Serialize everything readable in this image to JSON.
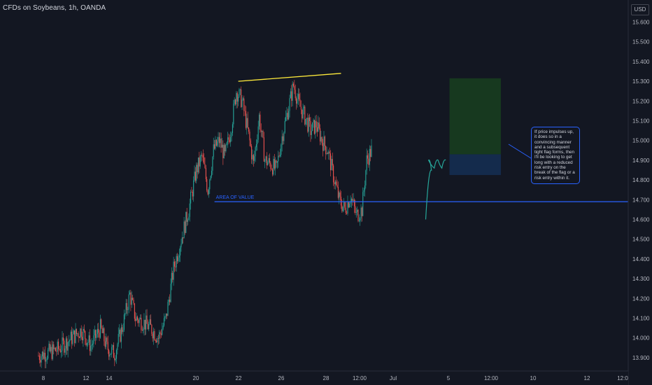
{
  "header": {
    "title": "CFDs on Soybeans, 1h, OANDA",
    "currency": "USD"
  },
  "chart_data": {
    "type": "candlestick",
    "title": "CFDs on Soybeans, 1h, OANDA",
    "price_axis_label": "USD",
    "ylim": [
      13.85,
      16.45
    ],
    "y_ticks": [
      "15.600",
      "15.500",
      "15.400",
      "15.300",
      "15.200",
      "15.100",
      "15.000",
      "14.900",
      "14.800",
      "14.700",
      "14.600",
      "14.500",
      "14.400",
      "14.300",
      "14.200",
      "14.100",
      "14.000",
      "13.900"
    ],
    "x_ticks": [
      "8",
      "12",
      "14",
      "20",
      "22",
      "26",
      "28",
      "12:00",
      "Jul",
      "5",
      "12:00",
      "10",
      "12",
      "12:0"
    ],
    "price_series": [
      {
        "idx": 0,
        "price": 13.91
      },
      {
        "idx": 20,
        "price": 13.94
      },
      {
        "idx": 35,
        "price": 14.0
      },
      {
        "idx": 45,
        "price": 14.04
      },
      {
        "idx": 55,
        "price": 13.96
      },
      {
        "idx": 65,
        "price": 14.05
      },
      {
        "idx": 72,
        "price": 13.95
      },
      {
        "idx": 80,
        "price": 13.92
      },
      {
        "idx": 88,
        "price": 14.05
      },
      {
        "idx": 96,
        "price": 14.22
      },
      {
        "idx": 102,
        "price": 14.1
      },
      {
        "idx": 110,
        "price": 14.08
      },
      {
        "idx": 118,
        "price": 14.05
      },
      {
        "idx": 126,
        "price": 14.0
      },
      {
        "idx": 134,
        "price": 14.1
      },
      {
        "idx": 142,
        "price": 14.35
      },
      {
        "idx": 150,
        "price": 14.5
      },
      {
        "idx": 158,
        "price": 14.65
      },
      {
        "idx": 166,
        "price": 14.85
      },
      {
        "idx": 172,
        "price": 14.92
      },
      {
        "idx": 178,
        "price": 14.75
      },
      {
        "idx": 184,
        "price": 14.95
      },
      {
        "idx": 190,
        "price": 15.0
      },
      {
        "idx": 196,
        "price": 14.92
      },
      {
        "idx": 202,
        "price": 15.05
      },
      {
        "idx": 208,
        "price": 15.25
      },
      {
        "idx": 214,
        "price": 15.2
      },
      {
        "idx": 220,
        "price": 15.05
      },
      {
        "idx": 226,
        "price": 14.88
      },
      {
        "idx": 232,
        "price": 15.12
      },
      {
        "idx": 238,
        "price": 14.9
      },
      {
        "idx": 244,
        "price": 14.88
      },
      {
        "idx": 250,
        "price": 14.85
      },
      {
        "idx": 256,
        "price": 15.02
      },
      {
        "idx": 262,
        "price": 15.15
      },
      {
        "idx": 268,
        "price": 15.28
      },
      {
        "idx": 274,
        "price": 15.18
      },
      {
        "idx": 280,
        "price": 15.12
      },
      {
        "idx": 286,
        "price": 15.05
      },
      {
        "idx": 292,
        "price": 15.08
      },
      {
        "idx": 298,
        "price": 15.0
      },
      {
        "idx": 304,
        "price": 14.95
      },
      {
        "idx": 310,
        "price": 14.82
      },
      {
        "idx": 316,
        "price": 14.7
      },
      {
        "idx": 322,
        "price": 14.65
      },
      {
        "idx": 328,
        "price": 14.72
      },
      {
        "idx": 334,
        "price": 14.62
      },
      {
        "idx": 340,
        "price": 14.65
      },
      {
        "idx": 345,
        "price": 14.9
      },
      {
        "idx": 350,
        "price": 14.95
      }
    ],
    "candle_count": 351,
    "trendline": {
      "color": "#ffeb3b",
      "start": {
        "idx": 210,
        "price": 15.3
      },
      "end": {
        "idx": 318,
        "price": 15.34
      }
    },
    "area_of_value": {
      "label": "AREA OF VALUE",
      "price": 14.69,
      "color": "#2962ff",
      "start_idx": 185
    },
    "projection_path": [
      {
        "idx": 407,
        "price": 14.6
      },
      {
        "idx": 413,
        "price": 14.85
      },
      {
        "idx": 410,
        "price": 14.9
      },
      {
        "idx": 416,
        "price": 14.86
      },
      {
        "idx": 420,
        "price": 14.9
      },
      {
        "idx": 424,
        "price": 14.86
      },
      {
        "idx": 428,
        "price": 14.9
      }
    ],
    "position_box": {
      "start_idx": 432,
      "end_idx": 486,
      "entry": 14.93,
      "target": 15.315,
      "stop": 14.825
    },
    "colors": {
      "up": "#26a69a",
      "down": "#ef5350",
      "profit_zone": "#17391f",
      "loss_zone": "#142b4c",
      "background": "#131722"
    }
  },
  "note": {
    "text": "If price impulses up, it does so in a convincing manner and a subsequent tight flag forms, then I'll be looking to get long with a reduced risk entry on the break of the flag or a risk entry within it."
  }
}
